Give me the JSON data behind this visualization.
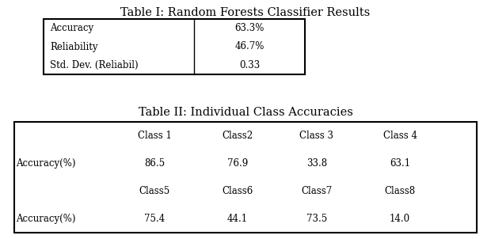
{
  "title1": "Table I: Random Forests Classifier Results",
  "table1_rows": [
    [
      "Accuracy",
      "63.3%"
    ],
    [
      "Reliability",
      "46.7%"
    ],
    [
      "Std. Dev. (Reliabil)",
      "0.33"
    ]
  ],
  "title2": "Table II: Individual Class Accuracies",
  "table2_header_row1": [
    "",
    "Class 1",
    "Class2",
    "Class 3",
    "Class 4"
  ],
  "table2_data_row1": [
    "Accuracy(%)",
    "86.5",
    "76.9",
    "33.8",
    "63.1"
  ],
  "table2_header_row2": [
    "",
    "Class5",
    "Class6",
    "Class7",
    "Class8"
  ],
  "table2_data_row2": [
    "Accuracy(%)",
    "75.4",
    "44.1",
    "73.5",
    "14.0"
  ],
  "bg_color": "#ffffff",
  "text_color": "#000000",
  "title1_fontsize": 10.5,
  "title2_fontsize": 10.5,
  "cell_fontsize": 8.5,
  "font_family": "DejaVu Serif"
}
